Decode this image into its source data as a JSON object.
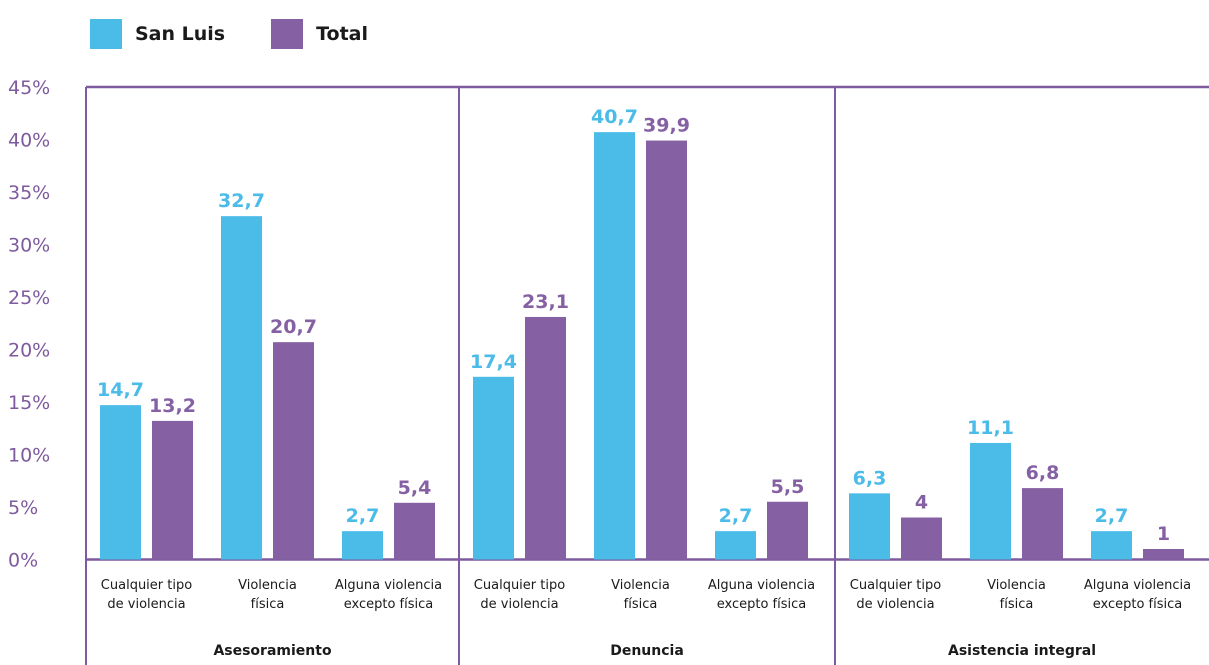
{
  "colors": {
    "san_luis": "#4BBBE8",
    "total": "#8561A4",
    "axis": "#7E5A9E",
    "ytick": "#7E5A9E",
    "text": "#1a1a1a"
  },
  "legend": [
    {
      "name": "San Luis",
      "color": "#4BBBE8"
    },
    {
      "name": "Total",
      "color": "#8561A4"
    }
  ],
  "chart_data": {
    "type": "bar",
    "title": "",
    "ylim": [
      0,
      45
    ],
    "yticks": [
      "0%",
      "5%",
      "10%",
      "15%",
      "20%",
      "25%",
      "30%",
      "35%",
      "40%",
      "45%"
    ],
    "legend_position": "top-left",
    "groups": [
      {
        "label": "Asesoramiento",
        "categories": [
          [
            "Cualquier tipo",
            "de violencia"
          ],
          [
            "Violencia",
            "física"
          ],
          [
            "Alguna violencia",
            "excepto física"
          ]
        ],
        "series": [
          {
            "name": "San Luis",
            "values": [
              14.7,
              32.7,
              2.7
            ],
            "labels": [
              "14,7",
              "32,7",
              "2,7"
            ]
          },
          {
            "name": "Total",
            "values": [
              13.2,
              20.7,
              5.4
            ],
            "labels": [
              "13,2",
              "20,7",
              "5,4"
            ]
          }
        ]
      },
      {
        "label": "Denuncia",
        "categories": [
          [
            "Cualquier tipo",
            "de violencia"
          ],
          [
            "Violencia",
            "física"
          ],
          [
            "Alguna violencia",
            "excepto física"
          ]
        ],
        "series": [
          {
            "name": "San Luis",
            "values": [
              17.4,
              40.7,
              2.7
            ],
            "labels": [
              "17,4",
              "40,7",
              "2,7"
            ]
          },
          {
            "name": "Total",
            "values": [
              23.1,
              39.9,
              5.5
            ],
            "labels": [
              "23,1",
              "39,9",
              "5,5"
            ]
          }
        ]
      },
      {
        "label": "Asistencia integral",
        "categories": [
          [
            "Cualquier tipo",
            "de violencia"
          ],
          [
            "Violencia",
            "física"
          ],
          [
            "Alguna violencia",
            "excepto física"
          ]
        ],
        "series": [
          {
            "name": "San Luis",
            "values": [
              6.3,
              11.1,
              2.7
            ],
            "labels": [
              "6,3",
              "11,1",
              "2,7"
            ]
          },
          {
            "name": "Total",
            "values": [
              4,
              6.8,
              1
            ],
            "labels": [
              "4",
              "6,8",
              "1"
            ]
          }
        ]
      }
    ]
  }
}
